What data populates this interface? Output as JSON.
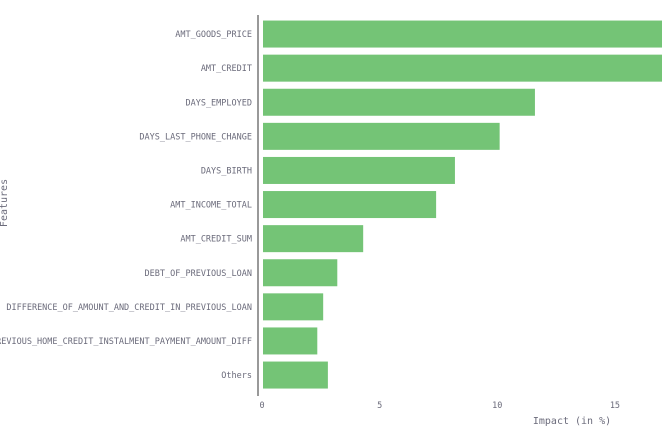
{
  "chart_data": {
    "type": "bar",
    "orientation": "horizontal",
    "categories": [
      "AMT_GOODS_PRICE",
      "AMT_CREDIT",
      "DAYS_EMPLOYED",
      "DAYS_LAST_PHONE_CHANGE",
      "DAYS_BIRTH",
      "AMT_INCOME_TOTAL",
      "AMT_CREDIT_SUM",
      "DEBT_OF_PREVIOUS_LOAN",
      "DIFFERENCE_OF_AMOUNT_AND_CREDIT_IN_PREVIOUS_LOAN",
      "PREVIOUS_HOME_CREDIT_INSTALMENT_PAYMENT_AMOUNT_DIFF",
      "Others"
    ],
    "values": [
      19.0,
      18.5,
      11.6,
      10.1,
      8.2,
      7.4,
      4.3,
      3.2,
      2.6,
      2.35,
      2.8
    ],
    "xlabel": "Impact (in %)",
    "ylabel": "Features",
    "xlim": [
      0,
      17
    ],
    "xticks": [
      0,
      5,
      10,
      15
    ],
    "grid": false,
    "bar_color": "#74c476",
    "text_color": "#6b6b7b",
    "axis_color": "#333333"
  }
}
